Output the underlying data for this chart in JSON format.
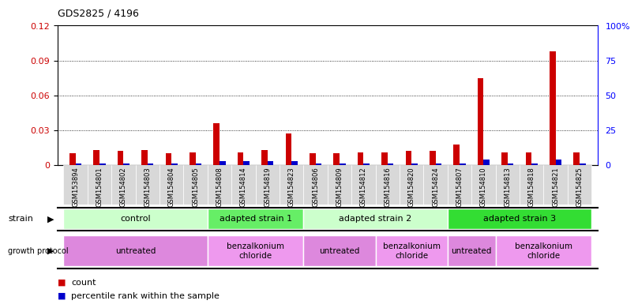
{
  "title": "GDS2825 / 4196",
  "samples": [
    "GSM153894",
    "GSM154801",
    "GSM154802",
    "GSM154803",
    "GSM154804",
    "GSM154805",
    "GSM154808",
    "GSM154814",
    "GSM154819",
    "GSM154823",
    "GSM154806",
    "GSM154809",
    "GSM154812",
    "GSM154816",
    "GSM154820",
    "GSM154824",
    "GSM154807",
    "GSM154810",
    "GSM154813",
    "GSM154818",
    "GSM154821",
    "GSM154825"
  ],
  "count_values": [
    0.01,
    0.013,
    0.012,
    0.013,
    0.01,
    0.011,
    0.036,
    0.011,
    0.013,
    0.027,
    0.01,
    0.01,
    0.011,
    0.011,
    0.012,
    0.012,
    0.018,
    0.075,
    0.011,
    0.011,
    0.098,
    0.011
  ],
  "percentile_values": [
    1,
    1,
    1,
    1,
    1,
    1,
    3,
    3,
    3,
    3,
    1,
    1,
    1,
    1,
    1,
    1,
    1,
    4,
    1,
    1,
    4,
    1
  ],
  "count_color": "#cc0000",
  "percentile_color": "#0000cc",
  "bar_width": 0.25,
  "ylim_left": [
    0,
    0.12
  ],
  "ylim_right": [
    0,
    100
  ],
  "yticks_left": [
    0,
    0.03,
    0.06,
    0.09,
    0.12
  ],
  "ytick_labels_left": [
    "0",
    "0.03",
    "0.06",
    "0.09",
    "0.12"
  ],
  "yticks_right": [
    0,
    25,
    50,
    75,
    100
  ],
  "ytick_labels_right": [
    "0",
    "25",
    "50",
    "75",
    "100%"
  ],
  "strain_groups": [
    {
      "label": "control",
      "start": 0,
      "end": 5,
      "color": "#ccffcc"
    },
    {
      "label": "adapted strain 1",
      "start": 6,
      "end": 9,
      "color": "#66ee66"
    },
    {
      "label": "adapted strain 2",
      "start": 10,
      "end": 15,
      "color": "#ccffcc"
    },
    {
      "label": "adapted strain 3",
      "start": 16,
      "end": 21,
      "color": "#33dd33"
    }
  ],
  "protocol_groups": [
    {
      "label": "untreated",
      "start": 0,
      "end": 5,
      "color": "#dd88dd"
    },
    {
      "label": "benzalkonium\nchloride",
      "start": 6,
      "end": 9,
      "color": "#ee99ee"
    },
    {
      "label": "untreated",
      "start": 10,
      "end": 12,
      "color": "#dd88dd"
    },
    {
      "label": "benzalkonium\nchloride",
      "start": 13,
      "end": 15,
      "color": "#ee99ee"
    },
    {
      "label": "untreated",
      "start": 16,
      "end": 17,
      "color": "#dd88dd"
    },
    {
      "label": "benzalkonium\nchloride",
      "start": 18,
      "end": 21,
      "color": "#ee99ee"
    }
  ],
  "legend_count_label": "count",
  "legend_percentile_label": "percentile rank within the sample",
  "background_color": "#ffffff",
  "plot_bg_color": "#ffffff",
  "xticklabel_bg": "#d8d8d8"
}
